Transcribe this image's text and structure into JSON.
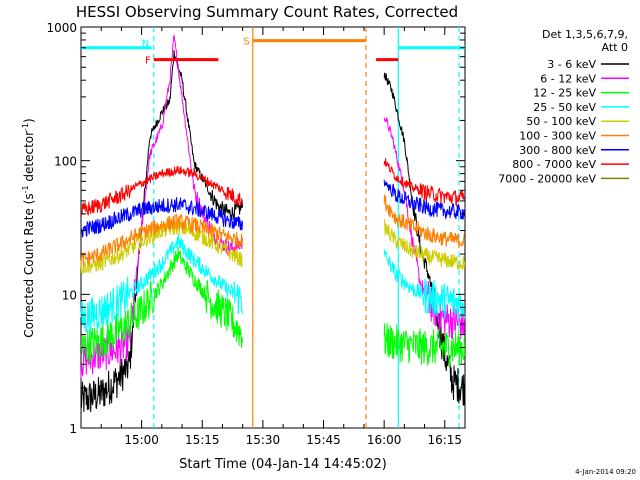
{
  "chart_data": {
    "type": "line",
    "title": "HESSI Observing Summary Count Rates, Corrected",
    "xlabel": "Start Time (04-Jan-14 14:45:02)",
    "ylabel_main": "Corrected Count Rate (s",
    "ylabel_sup1": "-1",
    "ylabel_mid": " detector",
    "ylabel_sup2": "-1",
    "ylabel_end": ")",
    "yscale": "log",
    "ylim": [
      1,
      1000
    ],
    "xlim_minutes": [
      0,
      95
    ],
    "x_tick_labels": [
      {
        "minute": 15,
        "label": "15:00"
      },
      {
        "minute": 30,
        "label": "15:15"
      },
      {
        "minute": 45,
        "label": "15:30"
      },
      {
        "minute": 60,
        "label": "15:45"
      },
      {
        "minute": 75,
        "label": "16:00"
      },
      {
        "minute": 90,
        "label": "16:15"
      }
    ],
    "y_tick_labels": [
      {
        "value": 1,
        "label": "1"
      },
      {
        "value": 10,
        "label": "10"
      },
      {
        "value": 100,
        "label": "100"
      },
      {
        "value": 1000,
        "label": "1000"
      }
    ],
    "legend_header": [
      "Det 1,3,5,6,7,9,",
      "Att 0"
    ],
    "legend_placement": "right",
    "series": [
      {
        "name": "3 - 6 keV",
        "color": "#000000",
        "pre": [
          [
            0,
            1.6
          ],
          [
            5,
            1.8
          ],
          [
            9,
            2.3
          ],
          [
            12,
            3.0
          ],
          [
            17,
            150
          ],
          [
            20,
            230
          ],
          [
            22,
            280
          ],
          [
            23,
            650
          ],
          [
            25,
            400
          ],
          [
            28,
            95
          ],
          [
            31,
            65
          ],
          [
            34,
            45
          ],
          [
            37,
            40
          ],
          [
            40,
            45
          ]
        ],
        "post": [
          [
            75,
            450
          ],
          [
            77,
            330
          ],
          [
            80,
            140
          ],
          [
            82,
            50
          ],
          [
            84,
            22
          ],
          [
            86,
            14
          ],
          [
            88,
            7
          ],
          [
            90,
            3.5
          ],
          [
            92,
            2.2
          ],
          [
            95,
            2.0
          ]
        ]
      },
      {
        "name": "6 - 12 keV",
        "color": "#ff00ff",
        "pre": [
          [
            0,
            3.2
          ],
          [
            5,
            3.6
          ],
          [
            10,
            4.0
          ],
          [
            12,
            4.5
          ],
          [
            17,
            110
          ],
          [
            20,
            180
          ],
          [
            22,
            400
          ],
          [
            23,
            850
          ],
          [
            25,
            300
          ],
          [
            28,
            60
          ],
          [
            31,
            35
          ],
          [
            34,
            25
          ],
          [
            37,
            22
          ],
          [
            40,
            24
          ]
        ],
        "post": [
          [
            75,
            220
          ],
          [
            77,
            150
          ],
          [
            80,
            60
          ],
          [
            82,
            25
          ],
          [
            84,
            12
          ],
          [
            87,
            8
          ],
          [
            90,
            6.5
          ],
          [
            95,
            6.0
          ]
        ]
      },
      {
        "name": "12 - 25 keV",
        "color": "#00ff00",
        "pre": [
          [
            0,
            4.0
          ],
          [
            5,
            4.5
          ],
          [
            10,
            5.5
          ],
          [
            15,
            7.5
          ],
          [
            20,
            12
          ],
          [
            24,
            20
          ],
          [
            28,
            13
          ],
          [
            32,
            9
          ],
          [
            36,
            7
          ],
          [
            40,
            5.0
          ]
        ],
        "post": [
          [
            75,
            4.5
          ],
          [
            80,
            4.2
          ],
          [
            85,
            4.0
          ],
          [
            90,
            4.0
          ],
          [
            95,
            4.0
          ]
        ]
      },
      {
        "name": "25 - 50 keV",
        "color": "#00ffff",
        "pre": [
          [
            0,
            6.5
          ],
          [
            5,
            7.5
          ],
          [
            10,
            9
          ],
          [
            15,
            12
          ],
          [
            20,
            17
          ],
          [
            24,
            25
          ],
          [
            28,
            18
          ],
          [
            32,
            14
          ],
          [
            36,
            11
          ],
          [
            40,
            9
          ]
        ],
        "post": [
          [
            75,
            20
          ],
          [
            78,
            14
          ],
          [
            82,
            11
          ],
          [
            86,
            9.5
          ],
          [
            90,
            9
          ],
          [
            95,
            8.5
          ]
        ]
      },
      {
        "name": "50 - 100 keV",
        "color": "#cccc00",
        "pre": [
          [
            0,
            16
          ],
          [
            5,
            17
          ],
          [
            10,
            20
          ],
          [
            15,
            25
          ],
          [
            20,
            30
          ],
          [
            24,
            32
          ],
          [
            28,
            29
          ],
          [
            32,
            25
          ],
          [
            36,
            21
          ],
          [
            40,
            18
          ]
        ],
        "post": [
          [
            75,
            32
          ],
          [
            78,
            25
          ],
          [
            82,
            21
          ],
          [
            86,
            19
          ],
          [
            90,
            18
          ],
          [
            95,
            17
          ]
        ]
      },
      {
        "name": "100 - 300 keV",
        "color": "#ff8000",
        "pre": [
          [
            0,
            18
          ],
          [
            5,
            20
          ],
          [
            10,
            24
          ],
          [
            15,
            29
          ],
          [
            20,
            33
          ],
          [
            24,
            35
          ],
          [
            28,
            33
          ],
          [
            32,
            30
          ],
          [
            36,
            27
          ],
          [
            40,
            25
          ]
        ],
        "post": [
          [
            75,
            50
          ],
          [
            78,
            37
          ],
          [
            82,
            32
          ],
          [
            86,
            28
          ],
          [
            90,
            26
          ],
          [
            95,
            25
          ]
        ]
      },
      {
        "name": "300 - 800 keV",
        "color": "#0000ff",
        "pre": [
          [
            0,
            30
          ],
          [
            5,
            33
          ],
          [
            10,
            38
          ],
          [
            15,
            43
          ],
          [
            20,
            46
          ],
          [
            24,
            47
          ],
          [
            28,
            44
          ],
          [
            32,
            40
          ],
          [
            36,
            36
          ],
          [
            40,
            33
          ]
        ],
        "post": [
          [
            75,
            70
          ],
          [
            78,
            55
          ],
          [
            82,
            48
          ],
          [
            86,
            44
          ],
          [
            90,
            42
          ],
          [
            95,
            41
          ]
        ]
      },
      {
        "name": "800 - 7000 keV",
        "color": "#ff0000",
        "pre": [
          [
            0,
            42
          ],
          [
            5,
            47
          ],
          [
            10,
            55
          ],
          [
            15,
            68
          ],
          [
            20,
            80
          ],
          [
            24,
            85
          ],
          [
            28,
            80
          ],
          [
            32,
            68
          ],
          [
            36,
            58
          ],
          [
            40,
            50
          ]
        ],
        "post": [
          [
            75,
            100
          ],
          [
            78,
            75
          ],
          [
            82,
            63
          ],
          [
            86,
            57
          ],
          [
            90,
            54
          ],
          [
            95,
            52
          ]
        ]
      },
      {
        "name": "7000 - 20000 keV",
        "color": "#808000",
        "pre": [],
        "post": []
      }
    ],
    "attenuator_segments": [
      {
        "label": "N",
        "color": "#00ffff",
        "x0": 0,
        "x1": 17.5,
        "y": 700
      },
      {
        "label": "",
        "color": "#00ffff",
        "x0": 78.5,
        "x1": 95,
        "y": 700
      }
    ],
    "flare_segments": [
      {
        "label": "F",
        "color": "#ff0000",
        "x0": 18,
        "x1": 34,
        "y": 570
      },
      {
        "label": "",
        "color": "#ff0000",
        "x0": 73,
        "x1": 78.5,
        "y": 570
      }
    ],
    "saa_segment": {
      "label": "S",
      "color": "#ff8000",
      "x0": 42.5,
      "x1": 70.5,
      "y": 790
    },
    "vertical_lines": [
      {
        "x": 18,
        "color": "#00ffff",
        "dashed": true
      },
      {
        "x": 78.5,
        "color": "#00ffff",
        "dashed": false
      },
      {
        "x": 93.5,
        "color": "#00ffff",
        "dashed": true
      },
      {
        "x": 42.5,
        "color": "#ff8000",
        "dashed": false
      },
      {
        "x": 70.5,
        "color": "#ff8000",
        "dashed": true
      }
    ]
  },
  "footer": {
    "timestamp": "4-Jan-2014 09:20"
  }
}
